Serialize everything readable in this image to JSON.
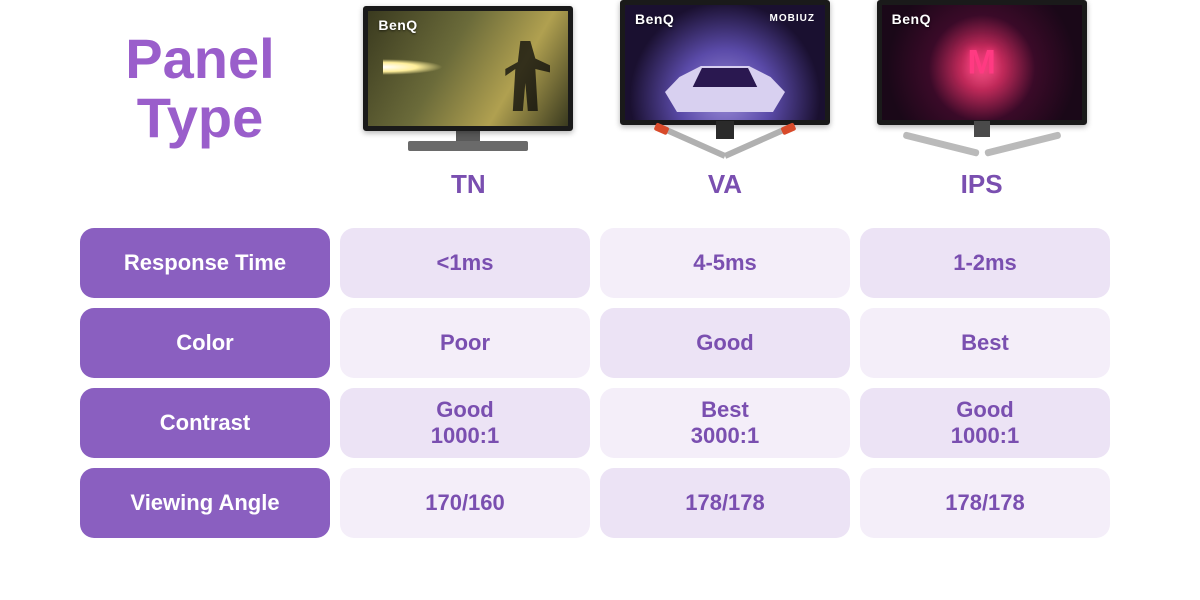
{
  "title": "Panel\nType",
  "title_color": "#9a5ecb",
  "brand": "BenQ",
  "subbrand_va": "MOBIUZ",
  "ips_glyph": "M",
  "columns": [
    {
      "key": "tn",
      "label": "TN"
    },
    {
      "key": "va",
      "label": "VA"
    },
    {
      "key": "ips",
      "label": "IPS"
    }
  ],
  "col_header_color": "#7a4fb0",
  "row_label_bg": "#8a5fc0",
  "row_label_text": "#ffffff",
  "cell_text_color": "#7a4fb0",
  "cell_bg_a": "#ece3f5",
  "cell_bg_b": "#f4eef9",
  "rows": [
    {
      "label": "Response\nTime",
      "tn": "<1ms",
      "va": "4-5ms",
      "ips": "1-2ms"
    },
    {
      "label": "Color",
      "tn": "Poor",
      "va": "Good",
      "ips": "Best"
    },
    {
      "label": "Contrast",
      "tn": "Good\n1000:1",
      "va": "Best\n3000:1",
      "ips": "Good\n1000:1"
    },
    {
      "label": "Viewing\nAngle",
      "tn": "170/160",
      "va": "178/178",
      "ips": "178/178"
    }
  ],
  "background": "#ffffff"
}
